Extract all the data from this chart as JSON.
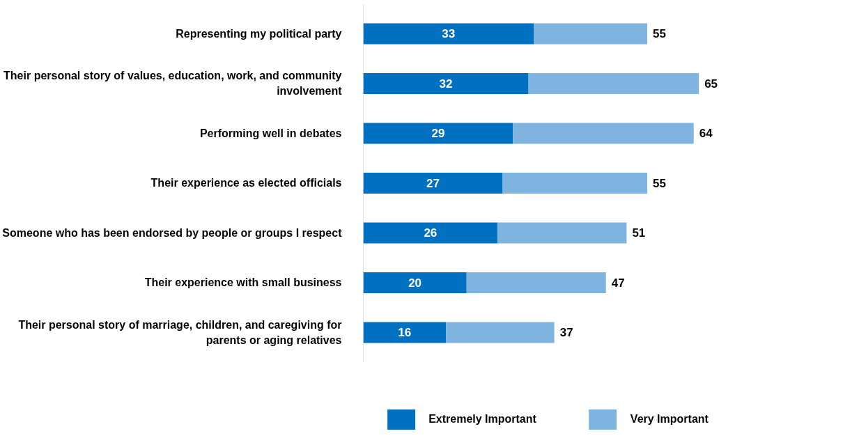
{
  "chart_data": {
    "type": "bar",
    "orientation": "horizontal",
    "stacked": true,
    "categories": [
      "Representing my political party",
      "Their personal story of values, education, work, and community involvement",
      "Performing well in debates",
      "Their experience as elected officials",
      "Someone who has been endorsed by people or groups I respect",
      "Their experience with small business",
      "Their personal story of marriage, children, and caregiving for parents or aging relatives"
    ],
    "series": [
      {
        "name": "Extremely Important",
        "color": "#0070c0",
        "values": [
          33,
          32,
          29,
          27,
          26,
          20,
          16
        ],
        "value_labels": [
          "33",
          "32",
          "29",
          "27",
          "26",
          "20",
          "16"
        ]
      },
      {
        "name": "Very Important",
        "color": "#7fb4e0",
        "values": [
          22,
          33,
          35,
          28,
          25,
          27,
          21
        ]
      }
    ],
    "totals": [
      "55",
      "65",
      "64",
      "55",
      "51",
      "47",
      "37"
    ],
    "tick_labels": "y",
    "grid": false,
    "legend": "bottom"
  }
}
